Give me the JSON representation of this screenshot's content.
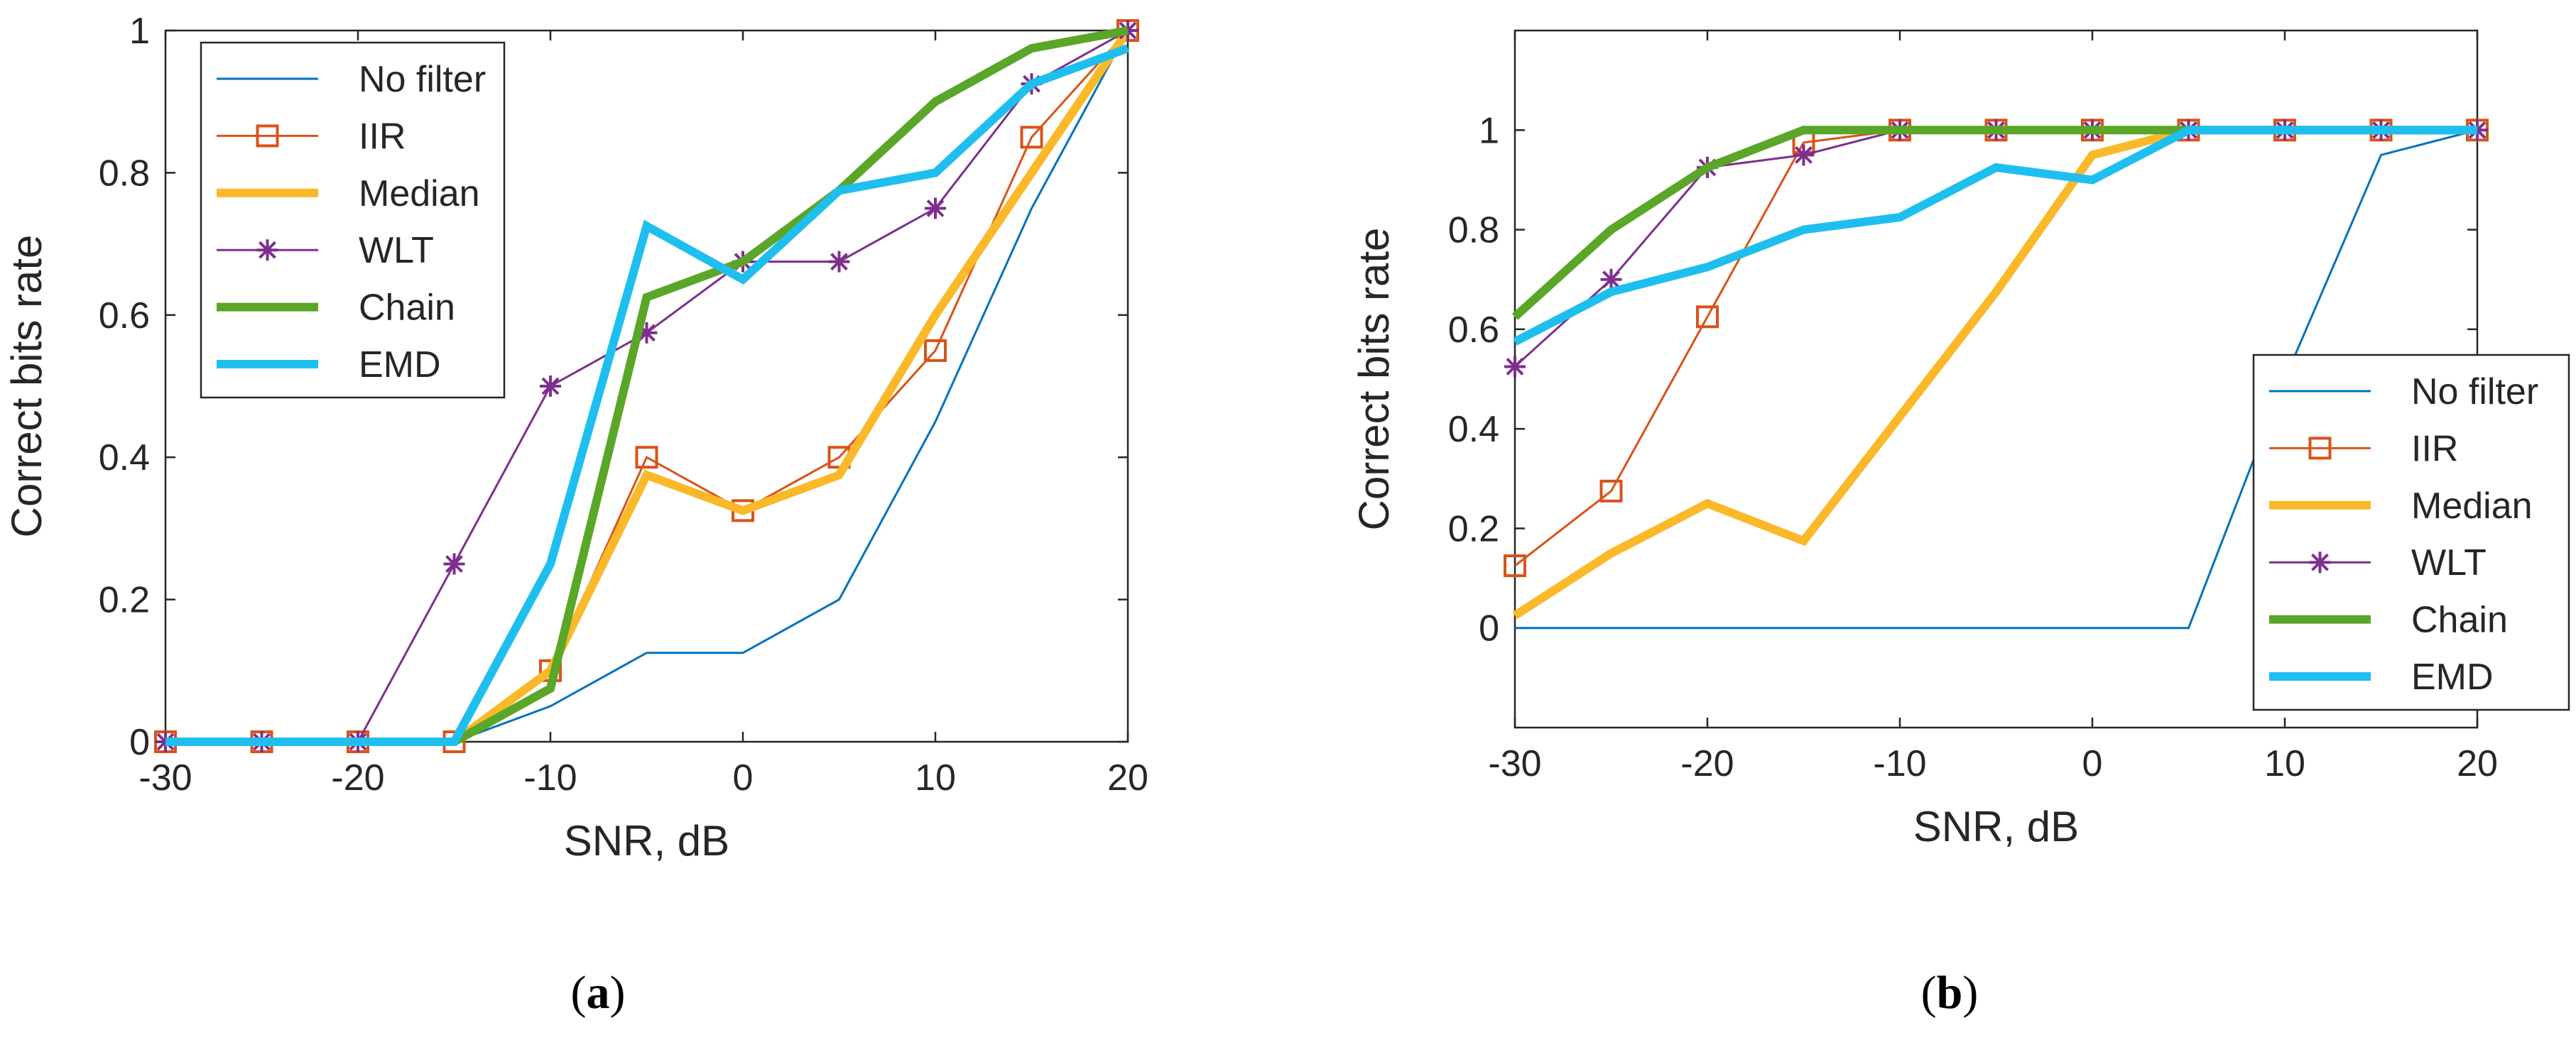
{
  "chart_data": [
    {
      "id": "a",
      "type": "line",
      "panel_label": "(a)",
      "panel_letter": "a",
      "title": "",
      "xlabel": "SNR, dB",
      "ylabel": "Correct bits rate",
      "xlim": [
        -30,
        20
      ],
      "ylim": [
        0,
        1
      ],
      "xticks": [
        -30,
        -20,
        -10,
        0,
        10,
        20
      ],
      "yticks": [
        0,
        0.2,
        0.4,
        0.6,
        0.8,
        1
      ],
      "ytick_labels": [
        "0",
        "0.2",
        "0.4",
        "0.6",
        "0.8",
        "1"
      ],
      "legend_position": "top-left",
      "x": [
        -30,
        -25,
        -20,
        -15,
        -10,
        -5,
        0,
        5,
        10,
        15,
        20
      ],
      "series": [
        {
          "name": "No filter",
          "color": "#0072bd",
          "style": "thin",
          "marker": "none",
          "values": [
            0,
            0,
            0,
            0,
            0.05,
            0.125,
            0.125,
            0.2,
            0.45,
            0.75,
            1
          ]
        },
        {
          "name": "IIR",
          "color": "#d95319",
          "style": "thin",
          "marker": "square",
          "values": [
            0,
            0,
            0,
            0,
            0.1,
            0.4,
            0.325,
            0.4,
            0.55,
            0.85,
            1
          ]
        },
        {
          "name": "Median",
          "color": "#fbb829",
          "style": "thick",
          "marker": "none",
          "values": [
            0,
            0,
            0,
            0,
            0.1,
            0.375,
            0.325,
            0.375,
            0.6,
            0.8,
            1
          ]
        },
        {
          "name": "WLT",
          "color": "#7e2f8e",
          "style": "thin",
          "marker": "star",
          "values": [
            0,
            0,
            0,
            0.25,
            0.5,
            0.575,
            0.675,
            0.675,
            0.75,
            0.925,
            1
          ]
        },
        {
          "name": "Chain",
          "color": "#5aa628",
          "style": "thick",
          "marker": "none",
          "values": [
            0,
            0,
            0,
            0,
            0.075,
            0.625,
            0.675,
            0.775,
            0.9,
            0.975,
            1
          ]
        },
        {
          "name": "EMD",
          "color": "#1ebfef",
          "style": "thick",
          "marker": "none",
          "values": [
            0,
            0,
            0,
            0,
            0.25,
            0.725,
            0.65,
            0.775,
            0.8,
            0.925,
            0.975
          ]
        }
      ]
    },
    {
      "id": "b",
      "type": "line",
      "panel_label": "(b)",
      "panel_letter": "b",
      "title": "",
      "xlabel": "SNR, dB",
      "ylabel": "Correct bits rate",
      "xlim": [
        -30,
        20
      ],
      "ylim": [
        -0.2,
        1.2
      ],
      "xticks": [
        -30,
        -20,
        -10,
        0,
        10,
        20
      ],
      "yticks": [
        0,
        0.2,
        0.4,
        0.6,
        0.8,
        1
      ],
      "ytick_labels": [
        "0",
        "0.2",
        "0.4",
        "0.6",
        "0.8",
        "1"
      ],
      "legend_position": "bottom-right",
      "x": [
        -30,
        -25,
        -20,
        -15,
        -10,
        -5,
        0,
        5,
        10,
        15,
        20
      ],
      "series": [
        {
          "name": "No filter",
          "color": "#0072bd",
          "style": "thin",
          "marker": "none",
          "values": [
            0,
            0,
            0,
            0,
            0,
            0,
            0,
            0,
            0.5,
            0.95,
            1
          ]
        },
        {
          "name": "IIR",
          "color": "#d95319",
          "style": "thin",
          "marker": "square",
          "values": [
            0.125,
            0.275,
            0.625,
            0.975,
            1,
            1,
            1,
            1,
            1,
            1,
            1
          ]
        },
        {
          "name": "Median",
          "color": "#fbb829",
          "style": "thick",
          "marker": "none",
          "values": [
            0.025,
            0.15,
            0.25,
            0.175,
            0.425,
            0.675,
            0.95,
            1,
            1,
            1,
            1
          ]
        },
        {
          "name": "WLT",
          "color": "#7e2f8e",
          "style": "thin",
          "marker": "star",
          "values": [
            0.525,
            0.7,
            0.925,
            0.95,
            1,
            1,
            1,
            1,
            1,
            1,
            1
          ]
        },
        {
          "name": "Chain",
          "color": "#5aa628",
          "style": "thick",
          "marker": "none",
          "values": [
            0.625,
            0.8,
            0.925,
            1,
            1,
            1,
            1,
            1,
            1,
            1,
            1
          ]
        },
        {
          "name": "EMD",
          "color": "#1ebfef",
          "style": "thick",
          "marker": "none",
          "values": [
            0.575,
            0.675,
            0.725,
            0.8,
            0.825,
            0.925,
            0.9,
            1,
            1,
            1,
            1
          ]
        }
      ]
    }
  ]
}
